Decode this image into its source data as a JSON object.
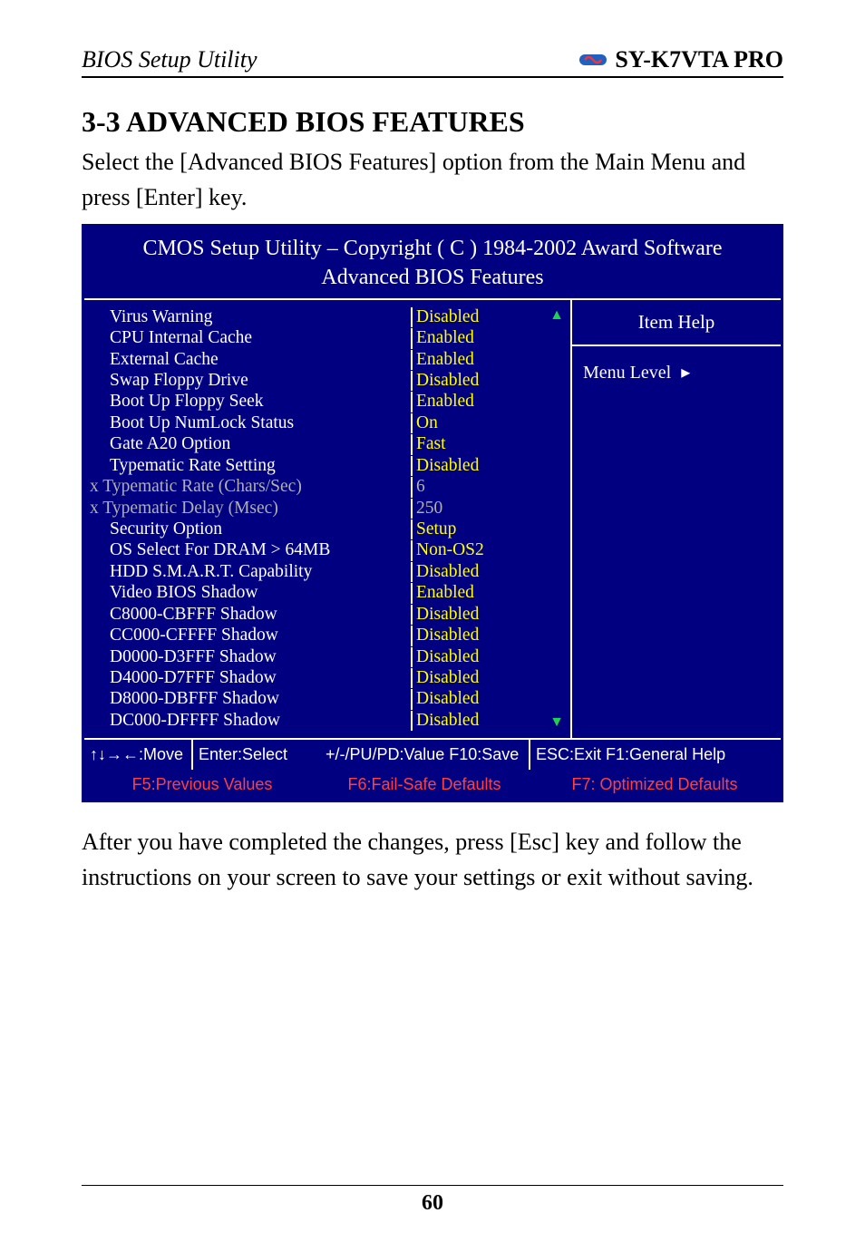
{
  "header": {
    "left": "BIOS Setup Utility",
    "right": "SY-K7VTA PRO"
  },
  "section_title": "3-3  ADVANCED BIOS FEATURES",
  "intro_text": "Select the [Advanced BIOS Features] option from the Main Menu and press [Enter] key.",
  "outro_text": "After you have completed the changes, press [Esc] key and follow the instructions on your screen to save your settings or exit without saving.",
  "page_number": "60",
  "bios": {
    "title_line1": "CMOS Setup Utility – Copyright ( C ) 1984-2002 Award Software",
    "title_line2": "Advanced BIOS Features",
    "help_title": "Item Help",
    "menu_level_label": "Menu Level",
    "settings": [
      {
        "label": "Virus Warning",
        "value": "Disabled",
        "indent": true,
        "gray": false
      },
      {
        "label": "CPU Internal Cache",
        "value": "Enabled",
        "indent": true,
        "gray": false
      },
      {
        "label": "External Cache",
        "value": "Enabled",
        "indent": true,
        "gray": false
      },
      {
        "label": "Swap Floppy Drive",
        "value": "Disabled",
        "indent": true,
        "gray": false
      },
      {
        "label": "Boot Up Floppy Seek",
        "value": "Enabled",
        "indent": true,
        "gray": false
      },
      {
        "label": "Boot Up NumLock Status",
        "value": "On",
        "indent": true,
        "gray": false
      },
      {
        "label": "Gate A20 Option",
        "value": "Fast",
        "indent": true,
        "gray": false
      },
      {
        "label": "Typematic Rate Setting",
        "value": "Disabled",
        "indent": true,
        "gray": false
      },
      {
        "label": "x Typematic Rate (Chars/Sec)",
        "value": "6",
        "indent": false,
        "gray": true
      },
      {
        "label": "x Typematic Delay (Msec)",
        "value": "250",
        "indent": false,
        "gray": true
      },
      {
        "label": "Security Option",
        "value": "Setup",
        "indent": true,
        "gray": false
      },
      {
        "label": "OS Select For DRAM > 64MB",
        "value": "Non-OS2",
        "indent": true,
        "gray": false
      },
      {
        "label": "HDD S.M.A.R.T. Capability",
        "value": "Disabled",
        "indent": true,
        "gray": false
      },
      {
        "label": "Video BIOS Shadow",
        "value": "Enabled",
        "indent": true,
        "gray": false
      },
      {
        "label": "C8000-CBFFF Shadow",
        "value": "Disabled",
        "indent": true,
        "gray": false
      },
      {
        "label": "CC000-CFFFF Shadow",
        "value": "Disabled",
        "indent": true,
        "gray": false
      },
      {
        "label": "D0000-D3FFF Shadow",
        "value": "Disabled",
        "indent": true,
        "gray": false
      },
      {
        "label": "D4000-D7FFF Shadow",
        "value": "Disabled",
        "indent": true,
        "gray": false
      },
      {
        "label": "D8000-DBFFF Shadow",
        "value": "Disabled",
        "indent": true,
        "gray": false
      },
      {
        "label": "DC000-DFFFF Shadow",
        "value": "Disabled",
        "indent": true,
        "gray": false
      }
    ],
    "footer": {
      "move": "↑↓→←:Move",
      "select": "Enter:Select",
      "value": "+/-/PU/PD:Value   F10:Save",
      "esc": "ESC:Exit      F1:General Help",
      "prev": "F5:Previous Values",
      "fail": "F6:Fail-Safe Defaults",
      "opt": "F7: Optimized Defaults"
    }
  },
  "colors": {
    "bios_bg": "#000080",
    "bios_text": "#ffffff",
    "value_text": "#ffff00",
    "gray_text": "#b0b0b0",
    "red_text": "#ff4040",
    "scroll_arrow": "#20d050"
  }
}
